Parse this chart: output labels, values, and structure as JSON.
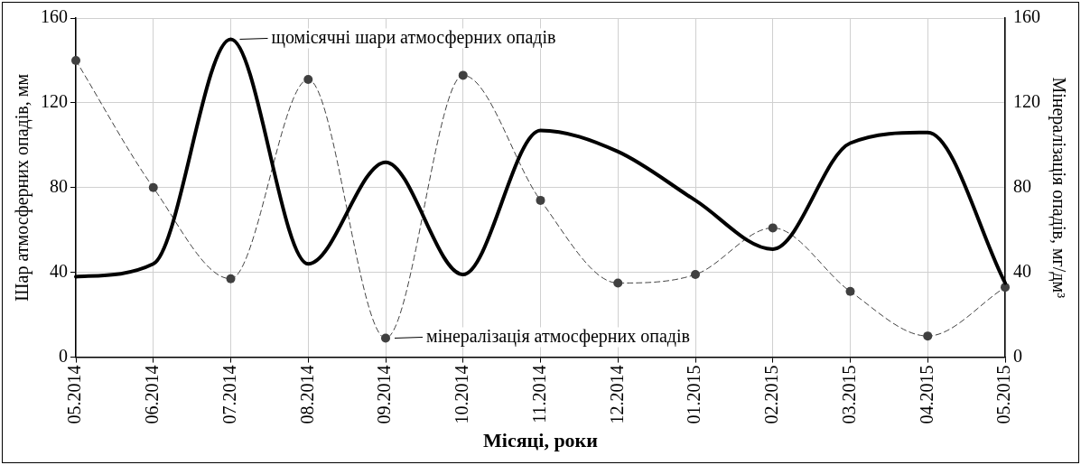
{
  "chart_data": {
    "type": "line",
    "categories": [
      "05.2014",
      "06.2014",
      "07.2014",
      "08.2014",
      "09.2014",
      "10.2014",
      "11.2014",
      "12.2014",
      "01.2015",
      "02.2015",
      "03.2015",
      "04.2015",
      "05.2015"
    ],
    "series": [
      {
        "color": "#000000",
        "marker": "none",
        "line_style": "solid",
        "values": [
          38,
          44,
          150,
          44,
          92,
          39,
          107,
          97,
          74,
          51,
          101,
          106,
          35
        ]
      },
      {
        "color": "#404040",
        "marker": "circle",
        "line_style": "dashed",
        "axis": "y2",
        "values": [
          140,
          80,
          37,
          131,
          9,
          133,
          74,
          35,
          39,
          61,
          31,
          10,
          33
        ]
      }
    ],
    "xlabel": "Місяці, роки",
    "ylabel": "Шар атмосферних опадів, мм",
    "y2label": "Мінералізація опадів, мг/дм³",
    "ylim": [
      0,
      160
    ],
    "yticks": [
      0,
      40,
      80,
      120,
      160
    ],
    "y2lim": [
      0,
      160
    ],
    "y2ticks": [
      0,
      40,
      80,
      120,
      160
    ],
    "grid": true,
    "legend": false,
    "annotations": [
      {
        "text": "щомісячні шари атмосферних опадів",
        "x": "07.2014",
        "y": 150
      },
      {
        "text": "мінералізація атмосферних опадів",
        "x": "09.2014",
        "y": 9
      }
    ]
  }
}
